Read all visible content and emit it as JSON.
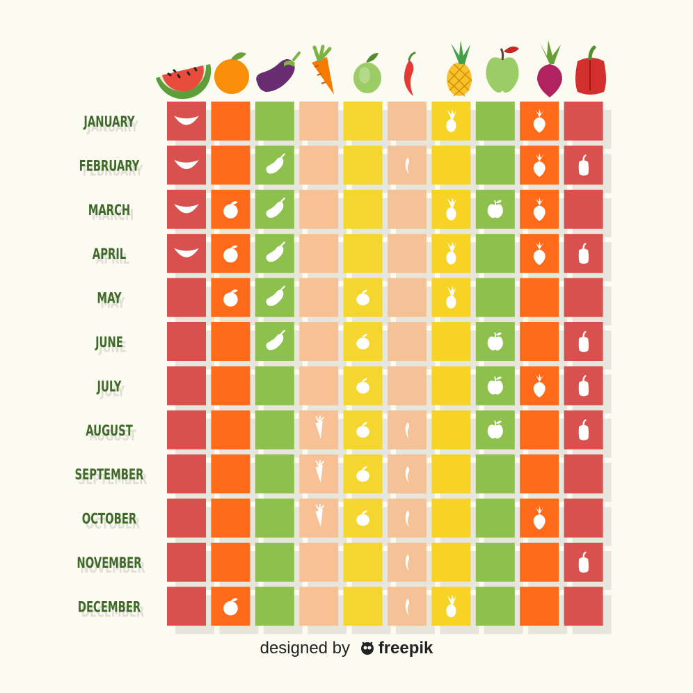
{
  "chart_data": {
    "type": "table",
    "months": [
      "JANUARY",
      "FEBRUARY",
      "MARCH",
      "APRIL",
      "MAY",
      "JUNE",
      "JULY",
      "AUGUST",
      "SEPTEMBER",
      "OCTOBER",
      "NOVEMBER",
      "DECEMBER"
    ],
    "columns": [
      {
        "icon": "watermelon-icon",
        "color": "#d9514e",
        "in_season": [
          1,
          2,
          3,
          4
        ]
      },
      {
        "icon": "orange-icon",
        "color": "#fd6b1a",
        "in_season": [
          3,
          4,
          5,
          12
        ]
      },
      {
        "icon": "eggplant-icon",
        "color": "#8ec04d",
        "in_season": [
          2,
          3,
          4,
          5,
          6
        ]
      },
      {
        "icon": "carrot-icon",
        "color": "#f7c195",
        "in_season": [
          8,
          9,
          10
        ]
      },
      {
        "icon": "lemon-icon",
        "color": "#f5d630",
        "in_season": [
          5,
          6,
          7,
          8,
          9,
          10
        ]
      },
      {
        "icon": "chili-pepper-icon",
        "color": "#f5c196",
        "in_season": [
          2,
          8,
          9,
          10,
          11,
          12
        ]
      },
      {
        "icon": "pineapple-icon",
        "color": "#f6d325",
        "in_season": [
          1,
          3,
          4,
          5,
          12
        ]
      },
      {
        "icon": "apple-icon",
        "color": "#8ec04d",
        "in_season": [
          3,
          6,
          7,
          8
        ]
      },
      {
        "icon": "beet-icon",
        "color": "#fd6b1a",
        "in_season": [
          1,
          2,
          3,
          4,
          7,
          10
        ]
      },
      {
        "icon": "bell-pepper-icon",
        "color": "#d9514e",
        "in_season": [
          2,
          4,
          6,
          7,
          8,
          11
        ]
      }
    ]
  },
  "credit": {
    "prefix": "designed by",
    "brand": "freepik"
  }
}
